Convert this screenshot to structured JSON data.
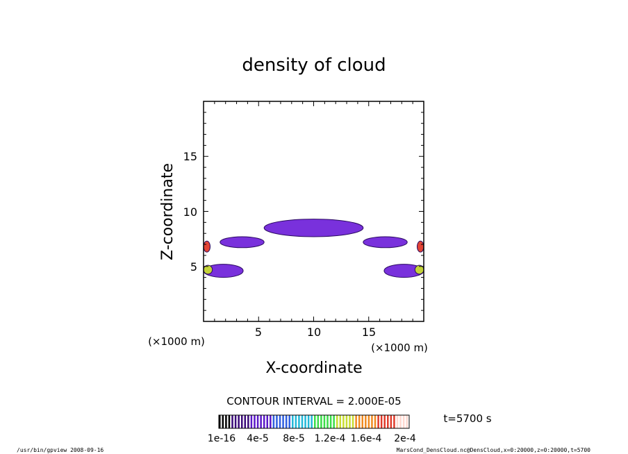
{
  "chart_data": {
    "type": "heatmap",
    "title": "density of cloud",
    "xlabel": "X-coordinate",
    "ylabel": "Z-coordinate",
    "x_unit": "(×1000 m)",
    "z_unit": "(×1000 m)",
    "xlim": [
      0,
      20
    ],
    "ylim": [
      0,
      20
    ],
    "x_ticks": [
      "5",
      "10",
      "15"
    ],
    "y_ticks": [
      "5",
      "10",
      "15"
    ],
    "contour_interval_label": "CONTOUR INTERVAL = 2.000E-05",
    "time_label": "t=5700 s",
    "colorbar_labels": [
      "1e-16",
      "4e-5",
      "8e-5",
      "1.2e-4",
      "1.6e-4",
      "2e-4"
    ],
    "colorbar_range": [
      1e-16,
      0.0002
    ],
    "colors": [
      "#000000",
      "#3a0a78",
      "#5a18c8",
      "#2f5fe0",
      "#22b8d8",
      "#3adc48",
      "#c8dc30",
      "#f08a20",
      "#e03a2a",
      "#ffd8d0"
    ],
    "fill_color": "#6a1bd8",
    "cloud_regions": [
      {
        "x": 10.0,
        "z": 8.5,
        "width": 9.0,
        "height": 1.6,
        "level": 0.35
      },
      {
        "x": 3.5,
        "z": 7.2,
        "width": 4.0,
        "height": 1.0,
        "level": 0.3
      },
      {
        "x": 16.5,
        "z": 7.2,
        "width": 4.0,
        "height": 1.0,
        "level": 0.3
      },
      {
        "x": 1.8,
        "z": 4.6,
        "width": 3.6,
        "height": 1.2,
        "level": 0.3
      },
      {
        "x": 18.2,
        "z": 4.6,
        "width": 3.6,
        "height": 1.2,
        "level": 0.3
      },
      {
        "x": 0.3,
        "z": 6.8,
        "width": 0.6,
        "height": 1.0,
        "level": 0.9
      },
      {
        "x": 19.7,
        "z": 6.8,
        "width": 0.6,
        "height": 1.0,
        "level": 0.9
      },
      {
        "x": 0.4,
        "z": 4.7,
        "width": 0.8,
        "height": 0.8,
        "level": 0.7
      },
      {
        "x": 19.6,
        "z": 4.7,
        "width": 0.8,
        "height": 0.8,
        "level": 0.7
      }
    ]
  },
  "footer": {
    "left": "/usr/bin/gpview   2008-09-16",
    "right": "MarsCond_DensCloud.nc@DensCloud,x=0:20000,z=0:20000,t=5700"
  }
}
